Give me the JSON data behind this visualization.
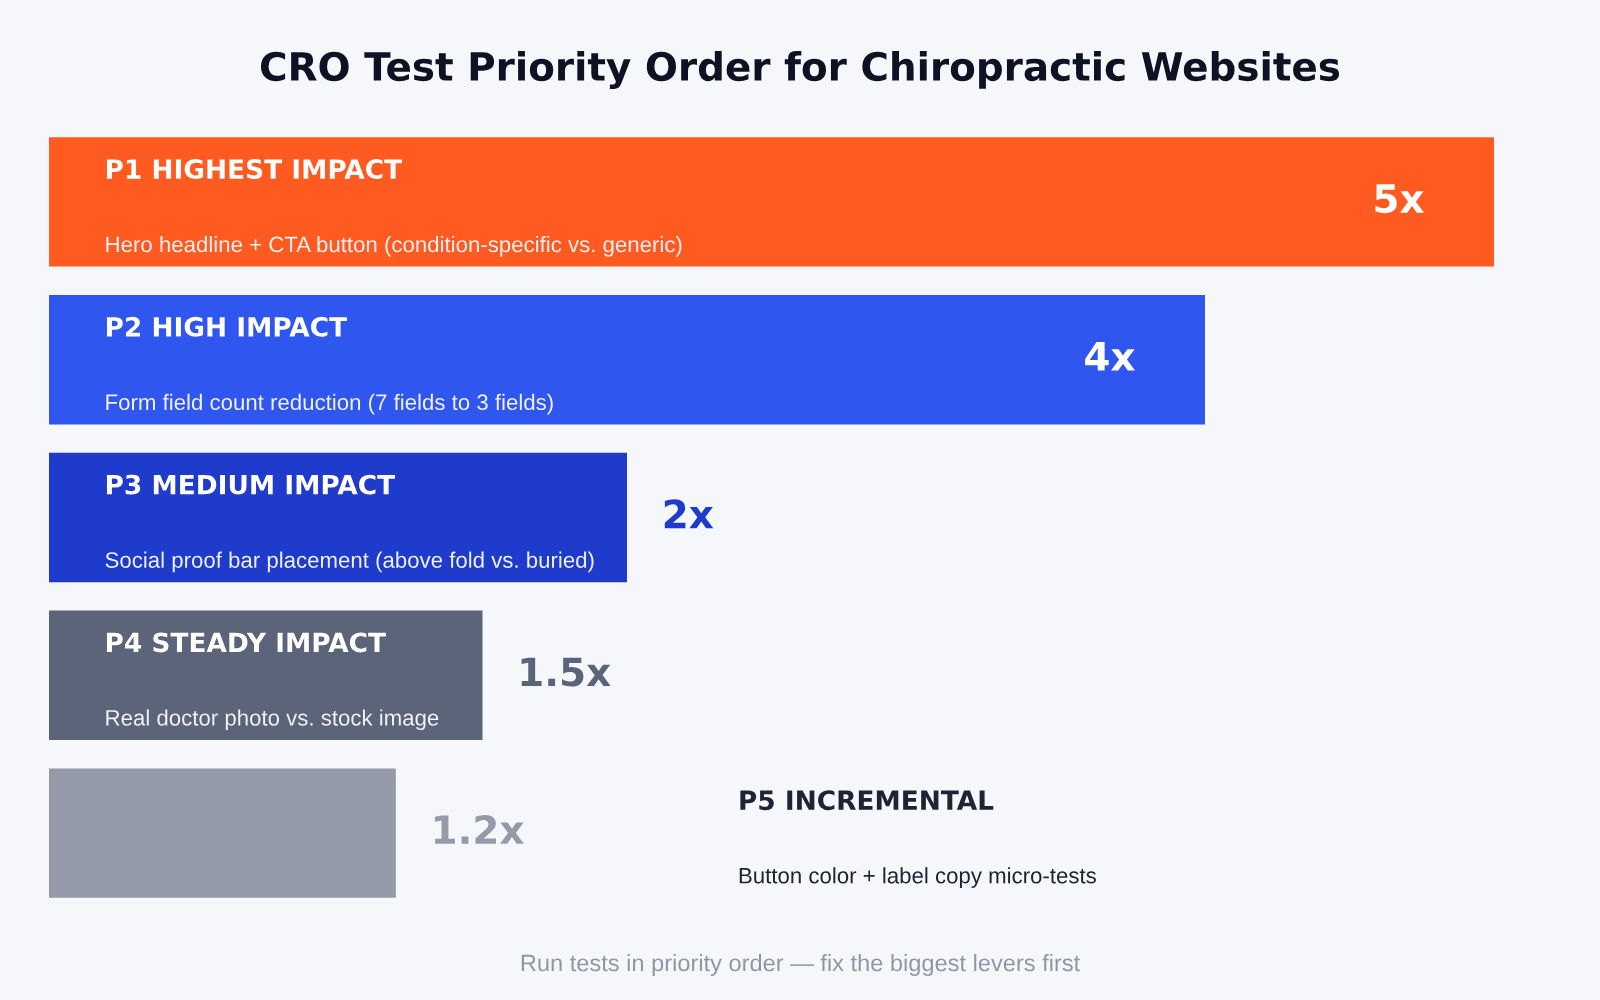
{
  "chart_data": {
    "type": "bar",
    "orientation": "horizontal",
    "title": "CRO Test Priority Order for Chiropractic Websites",
    "categories": [
      "P1 HIGHEST IMPACT\nHero headline + CTA button (condition-specific vs. generic)",
      "P2 HIGH IMPACT\nForm field count reduction (7 fields to 3 fields)",
      "P3 MEDIUM IMPACT\nSocial proof bar placement (above fold vs. buried)",
      "P4 STEADY IMPACT\nReal doctor photo vs. stock image",
      "P5 INCREMENTAL\nButton color + label copy micro-tests"
    ],
    "values": [
      5,
      4,
      2,
      1.5,
      1.2
    ],
    "colors": [
      "#ff5a1f",
      "#3056f0",
      "#1f3bcc",
      "#5b6478",
      "#959aa8"
    ],
    "value_labels": [
      "5x",
      "4x",
      "2x",
      "1.5x",
      "1.2x"
    ],
    "annotations": [
      "Run tests in priority order — fix the biggest levers first"
    ],
    "legend": false
  }
}
